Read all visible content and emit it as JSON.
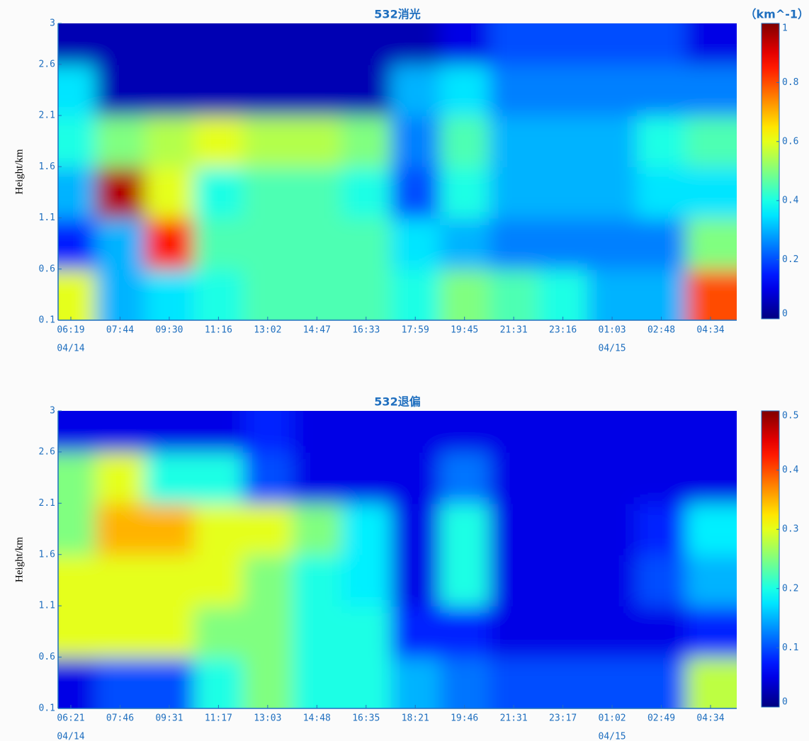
{
  "chart_data": [
    {
      "type": "heatmap",
      "title": "532消光",
      "ylabel": "Height/km",
      "categories": [
        "06:19",
        "07:44",
        "09:30",
        "11:16",
        "13:02",
        "14:47",
        "16:33",
        "17:59",
        "19:45",
        "21:31",
        "23:16",
        "01:03",
        "02:48",
        "04:34"
      ],
      "date_labels": [
        "04/14",
        null,
        null,
        null,
        null,
        null,
        null,
        null,
        null,
        null,
        null,
        "04/15",
        null,
        null
      ],
      "ylim": [
        0.1,
        3
      ],
      "yticks": [
        0.1,
        0.6,
        1.1,
        1.6,
        2.1,
        2.6,
        3
      ],
      "z": [
        [
          0.6,
          0.3,
          0.35,
          0.4,
          0.45,
          0.45,
          0.45,
          0.4,
          0.5,
          0.45,
          0.4,
          0.3,
          0.3,
          0.8
        ],
        [
          0.15,
          0.3,
          0.85,
          0.45,
          0.45,
          0.45,
          0.45,
          0.35,
          0.3,
          0.25,
          0.25,
          0.25,
          0.25,
          0.5
        ],
        [
          0.3,
          0.95,
          0.6,
          0.4,
          0.45,
          0.45,
          0.4,
          0.2,
          0.4,
          0.3,
          0.3,
          0.3,
          0.35,
          0.35
        ],
        [
          0.4,
          0.5,
          0.55,
          0.6,
          0.55,
          0.55,
          0.5,
          0.25,
          0.45,
          0.3,
          0.3,
          0.3,
          0.4,
          0.45
        ],
        [
          0.35,
          0.05,
          0.05,
          0.05,
          0.05,
          0.05,
          0.05,
          0.3,
          0.35,
          0.25,
          0.25,
          0.25,
          0.25,
          0.25
        ],
        [
          0.05,
          0.05,
          0.05,
          0.05,
          0.05,
          0.05,
          0.05,
          0.05,
          0.1,
          0.2,
          0.2,
          0.2,
          0.2,
          0.1
        ]
      ],
      "colorbar": {
        "label": "（km^-1）",
        "clim": [
          0,
          1
        ],
        "ticks": [
          0,
          0.2,
          0.4,
          0.6,
          0.8,
          1
        ]
      }
    },
    {
      "type": "heatmap",
      "title": "532退偏",
      "ylabel": "Height/km",
      "categories": [
        "06:21",
        "07:46",
        "09:31",
        "11:17",
        "13:03",
        "14:48",
        "16:35",
        "18:21",
        "19:46",
        "21:31",
        "23:17",
        "01:02",
        "02:49",
        "04:34"
      ],
      "date_labels": [
        "04/14",
        null,
        null,
        null,
        null,
        null,
        null,
        null,
        null,
        null,
        null,
        "04/15",
        null,
        null
      ],
      "ylim": [
        0.1,
        3
      ],
      "yticks": [
        0.1,
        0.6,
        1.1,
        1.6,
        2.1,
        2.6,
        3
      ],
      "z": [
        [
          0.05,
          0.1,
          0.1,
          0.2,
          0.25,
          0.2,
          0.2,
          0.15,
          0.12,
          0.1,
          0.1,
          0.1,
          0.1,
          0.28
        ],
        [
          0.3,
          0.3,
          0.3,
          0.25,
          0.25,
          0.2,
          0.2,
          0.08,
          0.08,
          0.05,
          0.05,
          0.05,
          0.05,
          0.08
        ],
        [
          0.3,
          0.3,
          0.3,
          0.3,
          0.25,
          0.2,
          0.18,
          0.05,
          0.2,
          0.05,
          0.05,
          0.05,
          0.1,
          0.15
        ],
        [
          0.25,
          0.35,
          0.35,
          0.3,
          0.3,
          0.25,
          0.18,
          0.05,
          0.2,
          0.05,
          0.05,
          0.05,
          0.08,
          0.18
        ],
        [
          0.25,
          0.3,
          0.2,
          0.2,
          0.1,
          0.05,
          0.05,
          0.05,
          0.12,
          0.05,
          0.05,
          0.05,
          0.05,
          0.05
        ],
        [
          0.05,
          0.05,
          0.05,
          0.05,
          0.08,
          0.05,
          0.05,
          0.05,
          0.05,
          0.05,
          0.05,
          0.05,
          0.05,
          0.05
        ]
      ],
      "colorbar": {
        "clim": [
          0,
          0.5
        ],
        "ticks": [
          0,
          0.1,
          0.2,
          0.3,
          0.4,
          0.5
        ]
      }
    }
  ]
}
